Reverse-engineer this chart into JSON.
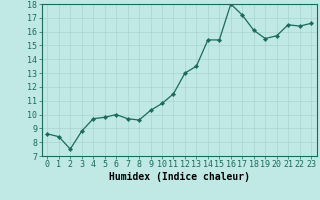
{
  "x": [
    0,
    1,
    2,
    3,
    4,
    5,
    6,
    7,
    8,
    9,
    10,
    11,
    12,
    13,
    14,
    15,
    16,
    17,
    18,
    19,
    20,
    21,
    22,
    23
  ],
  "y": [
    8.6,
    8.4,
    7.5,
    8.8,
    9.7,
    9.8,
    10.0,
    9.7,
    9.6,
    10.3,
    10.8,
    11.5,
    13.0,
    13.5,
    15.4,
    15.4,
    18.0,
    17.2,
    16.1,
    15.5,
    15.7,
    16.5,
    16.4,
    16.6
  ],
  "xlabel": "Humidex (Indice chaleur)",
  "ylim": [
    7,
    18
  ],
  "xlim_min": -0.5,
  "xlim_max": 23.5,
  "yticks": [
    7,
    8,
    9,
    10,
    11,
    12,
    13,
    14,
    15,
    16,
    17,
    18
  ],
  "xticks": [
    0,
    1,
    2,
    3,
    4,
    5,
    6,
    7,
    8,
    9,
    10,
    11,
    12,
    13,
    14,
    15,
    16,
    17,
    18,
    19,
    20,
    21,
    22,
    23
  ],
  "line_color": "#1a6b5e",
  "marker_color": "#1a6b5e",
  "bg_color": "#c0e8e4",
  "grid_color_major": "#a8d4d0",
  "grid_color_minor": "#b8deda",
  "xlabel_fontsize": 7,
  "tick_fontsize": 6
}
